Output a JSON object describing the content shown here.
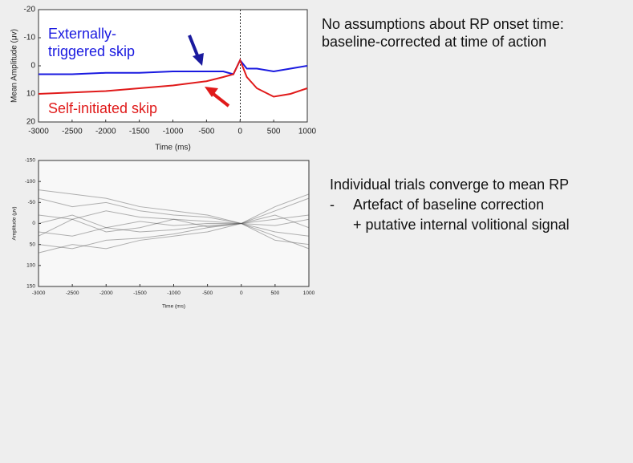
{
  "chart_data": [
    {
      "type": "line",
      "xlabel": "Time (ms)",
      "ylabel": "Mean Amplitude (μv)",
      "x": [
        -3000,
        -2500,
        -2000,
        -1500,
        -1000,
        -500,
        -250,
        -100,
        0,
        100,
        250,
        500,
        750,
        1000
      ],
      "series": [
        {
          "name": "Externally-triggered skip",
          "color": "#1a1ae0",
          "values": [
            3,
            3,
            2.5,
            2.5,
            2,
            2,
            2,
            3,
            -2,
            1,
            1,
            2,
            1,
            0
          ]
        },
        {
          "name": "Self-initiated skip",
          "color": "#e01a1a",
          "values": [
            10,
            9.5,
            9,
            8,
            7,
            5.5,
            4,
            3,
            -2,
            4,
            8,
            11,
            10,
            8
          ]
        }
      ],
      "xlim": [
        -3000,
        1000
      ],
      "xticks": [
        -3000,
        -2500,
        -2000,
        -1500,
        -1000,
        -500,
        0,
        500,
        1000
      ],
      "ylim": [
        -20,
        20
      ],
      "yticks": [
        -20,
        -10,
        0,
        10,
        20
      ],
      "y_inverted": true
    },
    {
      "type": "line",
      "xlabel": "Time (ms)",
      "ylabel": "Amplitude (μv)",
      "x": [
        -3000,
        -2500,
        -2000,
        -1500,
        -1000,
        -500,
        0,
        500,
        1000
      ],
      "series": [
        {
          "color": "#555555",
          "values": [
            -60,
            -40,
            -50,
            -30,
            -20,
            -15,
            0,
            -30,
            -60
          ]
        },
        {
          "color": "#555555",
          "values": [
            50,
            60,
            40,
            35,
            25,
            10,
            0,
            40,
            50
          ]
        },
        {
          "color": "#555555",
          "values": [
            -20,
            -10,
            -30,
            -15,
            -10,
            -5,
            0,
            -10,
            -20
          ]
        },
        {
          "color": "#555555",
          "values": [
            20,
            30,
            10,
            20,
            15,
            5,
            0,
            20,
            30
          ]
        },
        {
          "color": "#555555",
          "values": [
            -80,
            -70,
            -60,
            -40,
            -30,
            -20,
            0,
            -40,
            -70
          ]
        },
        {
          "color": "#555555",
          "values": [
            70,
            50,
            60,
            40,
            30,
            20,
            0,
            30,
            60
          ]
        },
        {
          "color": "#555555",
          "values": [
            0,
            -20,
            10,
            -5,
            5,
            0,
            0,
            5,
            -10
          ]
        },
        {
          "color": "#555555",
          "values": [
            30,
            -10,
            20,
            10,
            -10,
            8,
            0,
            -20,
            10
          ]
        }
      ],
      "xlim": [
        -3000,
        1000
      ],
      "xticks": [
        -3000,
        -2500,
        -2000,
        -1500,
        -1000,
        -500,
        0,
        500,
        1000
      ],
      "ylim": [
        -150,
        150
      ],
      "yticks": [
        -150,
        -100,
        -50,
        0,
        50,
        100,
        150
      ],
      "y_inverted": true
    }
  ],
  "notes": {
    "top": [
      "No assumptions about RP onset time:",
      "baseline-corrected at time of action"
    ],
    "bottom": {
      "heading": "Individual trials converge to mean RP",
      "bullet": "-",
      "items": [
        "Artefact of baseline correction",
        "+ putative internal volitional signal"
      ]
    }
  }
}
